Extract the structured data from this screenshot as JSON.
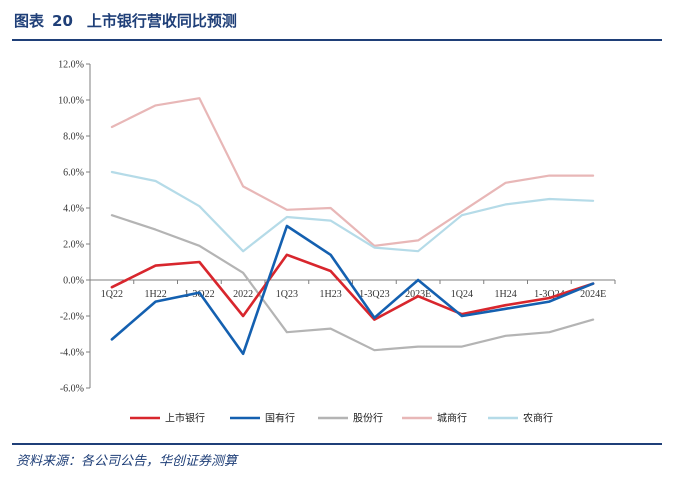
{
  "figure": {
    "label": "图表",
    "number": "20",
    "title": "上市银行营收同比预测"
  },
  "source": "资料来源：各公司公告，华创证券测算",
  "chart_data": {
    "type": "line",
    "title": "上市银行营收同比预测",
    "xlabel": "",
    "ylabel": "",
    "ylim": [
      -6.0,
      12.0
    ],
    "ytick_step": 2.0,
    "ytick_format": "percent_1dp",
    "grid": false,
    "legend_position": "bottom",
    "categories": [
      "1Q22",
      "1H22",
      "1-3Q22",
      "2022",
      "1Q23",
      "1H23",
      "1-3Q23",
      "2023E",
      "1Q24",
      "1H24",
      "1-3Q24",
      "2024E"
    ],
    "series": [
      {
        "name": "上市银行",
        "color": "#d8262d",
        "values": [
          -0.4,
          0.8,
          1.0,
          -2.0,
          1.4,
          0.5,
          -2.2,
          -0.9,
          -1.9,
          -1.4,
          -1.0,
          -0.2
        ]
      },
      {
        "name": "国有行",
        "color": "#1460b0",
        "values": [
          -3.3,
          -1.2,
          -0.7,
          -4.1,
          3.0,
          1.4,
          -2.1,
          0.0,
          -2.0,
          -1.6,
          -1.2,
          -0.2
        ]
      },
      {
        "name": "股份行",
        "color": "#b4b4b4",
        "values": [
          3.6,
          2.8,
          1.9,
          0.4,
          -2.9,
          -2.7,
          -3.9,
          -3.7,
          -3.7,
          -3.1,
          -2.9,
          -2.2
        ]
      },
      {
        "name": "城商行",
        "color": "#e8b7b7",
        "values": [
          8.5,
          9.7,
          10.1,
          5.2,
          3.9,
          4.0,
          1.9,
          2.2,
          3.8,
          5.4,
          5.8,
          5.8
        ]
      },
      {
        "name": "农商行",
        "color": "#b5dbe8",
        "values": [
          6.0,
          5.5,
          4.1,
          1.6,
          3.5,
          3.3,
          1.8,
          1.6,
          3.6,
          4.2,
          4.5,
          4.4
        ]
      }
    ]
  }
}
